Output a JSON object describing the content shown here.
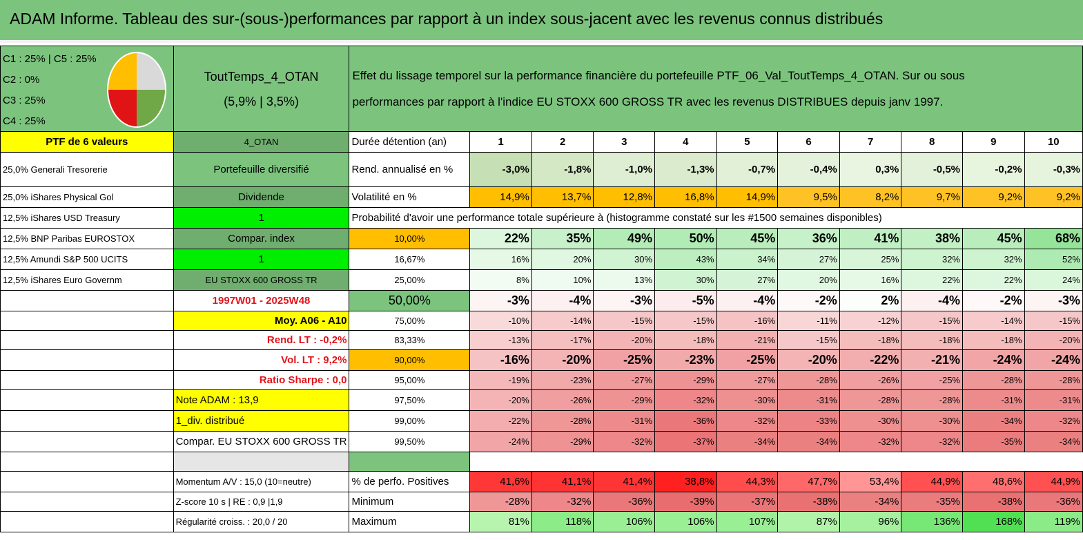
{
  "title": "ADAM Informe. Tableau des sur-(sous-)performances par rapport à un index sous-jacent avec les revenus connus distribués",
  "legend": [
    "C1 : 25% | C5 : 25%",
    "C2 : 0%",
    "C3 : 25%",
    "C4 : 25%"
  ],
  "pie_colors": [
    "#ffbe00",
    "#d9d9d9",
    "#e01414",
    "#70a848"
  ],
  "portfolio": {
    "name": "ToutTemps_4_OTAN",
    "stats": "(5,9% | 3,5%)"
  },
  "description": {
    "line1": "Effet du lissage temporel sur la performance financière du portefeuille PTF_06_Val_ToutTemps_4_OTAN. Sur ou sous",
    "line2": "performances par rapport à l'indice EU STOXX 600 GROSS TR avec les revenus DISTRIBUES depuis janv 1997."
  },
  "left_labels": [
    "PTF de 6 valeurs",
    "25,0% Generali Tresorerie",
    "25,0% iShares Physical Gol",
    "12,5% iShares USD Treasury",
    "12,5% BNP Paribas EUROSTOX",
    "12,5% Amundi S&P 500 UCITS",
    "12,5% iShares Euro Governm"
  ],
  "mid_labels": {
    "code": "4_OTAN",
    "diversified": "Portefeuille diversifié",
    "dividend": "Dividende",
    "one_a": "1",
    "compar_index": "Compar. index",
    "one_b": "1",
    "index_name": "EU STOXX 600 GROSS TR",
    "period": "1997W01 - 2025W48",
    "avg": "Moy. A06 - A10",
    "rend_lt": "Rend. LT : -0,2%",
    "vol_lt": "Vol. LT : 9,2%",
    "sharpe": "Ratio Sharpe : 0,0",
    "note": "Note ADAM : 13,9",
    "div": "1_div. distribué",
    "compar": "Compar. EU STOXX 600 GROSS TR",
    "momentum": "Momentum A/V : 15,0 (10=neutre)",
    "zscore": "Z-score 10 s | RE : 0,9 |1,9",
    "regularity": "Régularité croiss. : 20,0 / 20"
  },
  "row_labels": {
    "duration": "Durée détention (an)",
    "rend": "Rend. annualisé en %",
    "vol": "Volatilité en %",
    "proba": "Probabilité d'avoir une performance totale supérieure à (histogramme constaté sur les #1500 semaines disponibles)",
    "positives": "% de perfo. Positives",
    "minimum": "Minimum",
    "maximum": "Maximum"
  },
  "years": [
    "1",
    "2",
    "3",
    "4",
    "5",
    "6",
    "7",
    "8",
    "9",
    "10"
  ],
  "rend": [
    "-3,0%",
    "-1,8%",
    "-1,0%",
    "-1,3%",
    "-0,7%",
    "-0,4%",
    "0,3%",
    "-0,5%",
    "-0,2%",
    "-0,3%"
  ],
  "vol": [
    "14,9%",
    "13,7%",
    "12,8%",
    "16,8%",
    "14,9%",
    "9,5%",
    "8,2%",
    "9,7%",
    "9,2%",
    "9,2%"
  ],
  "quantiles": [
    {
      "level": "10,00%",
      "values": [
        "22%",
        "35%",
        "49%",
        "50%",
        "45%",
        "36%",
        "41%",
        "38%",
        "45%",
        "68%"
      ]
    },
    {
      "level": "16,67%",
      "values": [
        "16%",
        "20%",
        "30%",
        "43%",
        "34%",
        "27%",
        "25%",
        "32%",
        "32%",
        "52%"
      ]
    },
    {
      "level": "25,00%",
      "values": [
        "8%",
        "10%",
        "13%",
        "30%",
        "27%",
        "20%",
        "16%",
        "22%",
        "22%",
        "24%"
      ]
    },
    {
      "level": "50,00%",
      "values": [
        "-3%",
        "-4%",
        "-3%",
        "-5%",
        "-4%",
        "-2%",
        "2%",
        "-4%",
        "-2%",
        "-3%"
      ]
    },
    {
      "level": "75,00%",
      "values": [
        "-10%",
        "-14%",
        "-15%",
        "-15%",
        "-16%",
        "-11%",
        "-12%",
        "-15%",
        "-14%",
        "-15%"
      ]
    },
    {
      "level": "83,33%",
      "values": [
        "-13%",
        "-17%",
        "-20%",
        "-18%",
        "-21%",
        "-15%",
        "-18%",
        "-18%",
        "-18%",
        "-20%"
      ]
    },
    {
      "level": "90,00%",
      "values": [
        "-16%",
        "-20%",
        "-25%",
        "-23%",
        "-25%",
        "-20%",
        "-22%",
        "-21%",
        "-24%",
        "-24%"
      ]
    },
    {
      "level": "95,00%",
      "values": [
        "-19%",
        "-23%",
        "-27%",
        "-29%",
        "-27%",
        "-28%",
        "-26%",
        "-25%",
        "-28%",
        "-28%"
      ]
    },
    {
      "level": "97,50%",
      "values": [
        "-20%",
        "-26%",
        "-29%",
        "-32%",
        "-30%",
        "-31%",
        "-28%",
        "-28%",
        "-31%",
        "-31%"
      ]
    },
    {
      "level": "99,00%",
      "values": [
        "-22%",
        "-28%",
        "-31%",
        "-36%",
        "-32%",
        "-33%",
        "-30%",
        "-30%",
        "-34%",
        "-32%"
      ]
    },
    {
      "level": "99,50%",
      "values": [
        "-24%",
        "-29%",
        "-32%",
        "-37%",
        "-34%",
        "-34%",
        "-32%",
        "-32%",
        "-35%",
        "-34%"
      ]
    }
  ],
  "positives": [
    "41,6%",
    "41,1%",
    "41,4%",
    "38,8%",
    "44,3%",
    "47,7%",
    "53,4%",
    "44,9%",
    "48,6%",
    "44,9%"
  ],
  "minimum": [
    "-28%",
    "-32%",
    "-36%",
    "-39%",
    "-37%",
    "-38%",
    "-34%",
    "-35%",
    "-38%",
    "-36%"
  ],
  "maximum": [
    "81%",
    "118%",
    "106%",
    "106%",
    "107%",
    "87%",
    "96%",
    "136%",
    "168%",
    "119%"
  ]
}
